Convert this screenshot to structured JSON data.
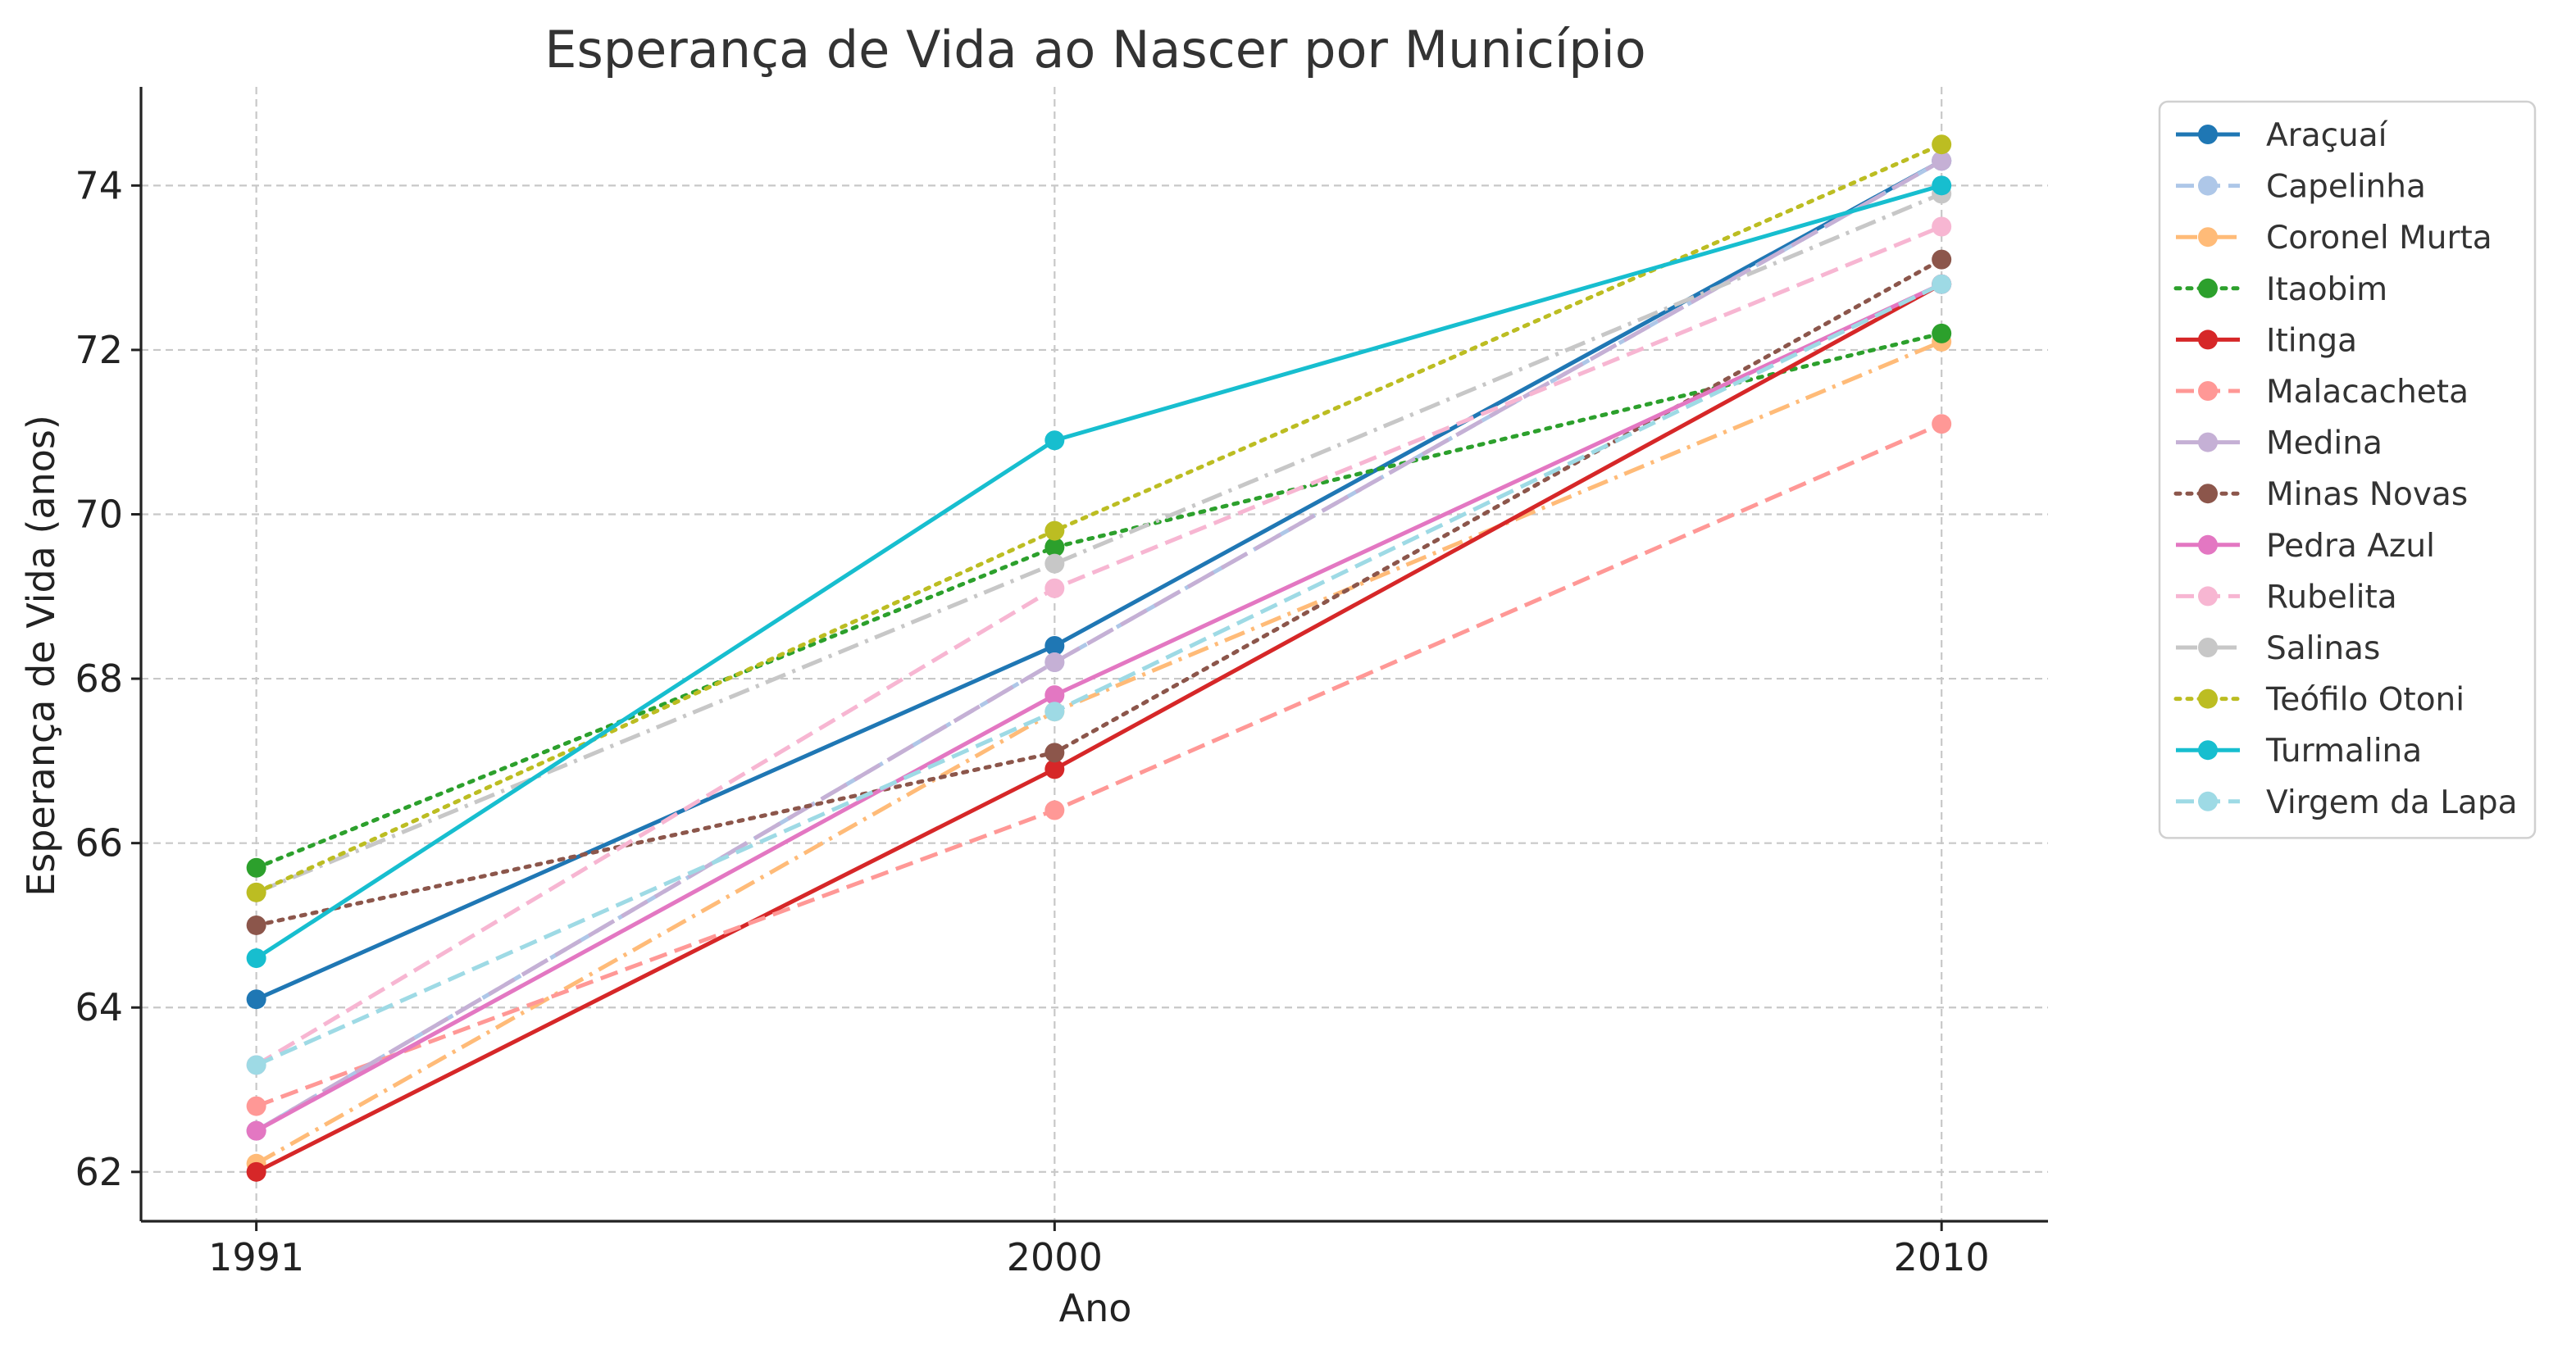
{
  "chart_data": {
    "type": "line",
    "title": "Esperança de Vida ao Nascer por Município",
    "xlabel": "Ano",
    "ylabel": "Esperança de Vida (anos)",
    "x": [
      1991,
      2000,
      2010
    ],
    "x_tick_labels": [
      "1991",
      "2000",
      "2010"
    ],
    "y_ticks": [
      62,
      64,
      66,
      68,
      70,
      72,
      74
    ],
    "y_tick_labels": [
      "62",
      "64",
      "66",
      "68",
      "70",
      "72",
      "74"
    ],
    "xlim": [
      1989.7,
      2011.2
    ],
    "ylim": [
      61.4,
      75.2
    ],
    "grid": true,
    "legend_position": "outside-right",
    "series": [
      {
        "name": "Araçuaí",
        "color": "#1f77b4",
        "dash": "solid",
        "values": [
          64.1,
          68.4,
          74.3
        ]
      },
      {
        "name": "Capelinha",
        "color": "#aec7e8",
        "dash": "dashed",
        "values": [
          62.5,
          68.2,
          74.3
        ]
      },
      {
        "name": "Coronel Murta",
        "color": "#ffbb78",
        "dash": "dashdot",
        "values": [
          62.1,
          67.6,
          72.1
        ]
      },
      {
        "name": "Itaobim",
        "color": "#2ca02c",
        "dash": "dotted",
        "values": [
          65.7,
          69.6,
          72.2
        ]
      },
      {
        "name": "Itinga",
        "color": "#d62728",
        "dash": "solid",
        "values": [
          62.0,
          66.9,
          72.8
        ]
      },
      {
        "name": "Malacacheta",
        "color": "#ff9896",
        "dash": "dashed",
        "values": [
          62.8,
          66.4,
          71.1
        ]
      },
      {
        "name": "Medina",
        "color": "#c5b0d5",
        "dash": "longdash",
        "values": [
          62.5,
          68.2,
          74.3
        ]
      },
      {
        "name": "Minas Novas",
        "color": "#8c564b",
        "dash": "dotted",
        "values": [
          65.0,
          67.1,
          73.1
        ]
      },
      {
        "name": "Pedra Azul",
        "color": "#e377c2",
        "dash": "solid",
        "values": [
          62.5,
          67.8,
          72.8
        ]
      },
      {
        "name": "Rubelita",
        "color": "#f7b6d2",
        "dash": "dashed",
        "values": [
          63.3,
          69.1,
          73.5
        ]
      },
      {
        "name": "Salinas",
        "color": "#c7c7c7",
        "dash": "dashdot",
        "values": [
          65.4,
          69.4,
          73.9
        ]
      },
      {
        "name": "Teófilo Otoni",
        "color": "#bcbd22",
        "dash": "dotted",
        "values": [
          65.4,
          69.8,
          74.5
        ]
      },
      {
        "name": "Turmalina",
        "color": "#17becf",
        "dash": "solid",
        "values": [
          64.6,
          70.9,
          74.0
        ]
      },
      {
        "name": "Virgem da Lapa",
        "color": "#9edae5",
        "dash": "dashed",
        "values": [
          63.3,
          67.6,
          72.8
        ]
      }
    ]
  }
}
